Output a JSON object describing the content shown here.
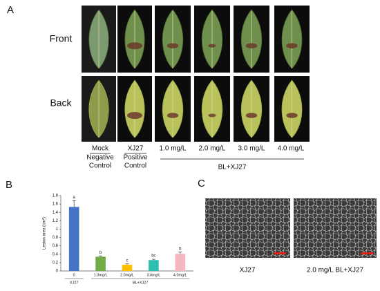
{
  "panel_a": {
    "label": "A",
    "row_labels": [
      "Front",
      "Back"
    ],
    "columns": [
      {
        "label": "Mock",
        "sub": [
          "Negative",
          "Control"
        ]
      },
      {
        "label": "XJ27",
        "sub": [
          "Positive",
          "Control"
        ]
      },
      {
        "label": "1.0 mg/L"
      },
      {
        "label": "2.0 mg/L"
      },
      {
        "label": "3.0 mg/L"
      },
      {
        "label": "4.0 mg/L"
      }
    ],
    "group_label": "BL+XJ27"
  },
  "panel_b": {
    "label": "B"
  },
  "chart_data": {
    "type": "bar",
    "y_label": "Lesion area (cm²)",
    "categories": [
      "0",
      "1.0mg/L",
      "2.0mg/L",
      "3.0mg/L",
      "4.0mg/L"
    ],
    "values": [
      1.53,
      0.34,
      0.15,
      0.26,
      0.41
    ],
    "errors": [
      0.15,
      0.02,
      0.02,
      0.02,
      0.04
    ],
    "letters": [
      "a",
      "b",
      "c",
      "bc",
      "b"
    ],
    "colors": [
      "#4472c4",
      "#70ad47",
      "#ffc000",
      "#2dbfb0",
      "#f4b8c0"
    ],
    "groups": [
      {
        "name": "XJ27",
        "from": 0,
        "to": 0
      },
      {
        "name": "BL+XJ27",
        "from": 1,
        "to": 4
      }
    ],
    "ylim": [
      0,
      1.8
    ],
    "yticks": [
      0,
      0.2,
      0.4,
      0.6,
      0.8,
      1,
      1.2,
      1.4,
      1.6,
      1.8
    ]
  },
  "panel_c": {
    "label": "C",
    "captions": [
      "XJ27",
      "2.0 mg/L BL+XJ27"
    ]
  }
}
